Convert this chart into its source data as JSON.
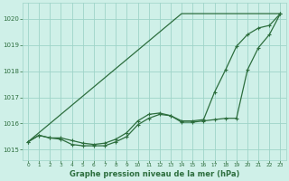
{
  "hours": [
    0,
    1,
    2,
    3,
    4,
    5,
    6,
    7,
    8,
    9,
    10,
    11,
    12,
    13,
    14,
    15,
    16,
    17,
    18,
    19,
    20,
    21,
    22,
    23
  ],
  "line_straight": [
    1015.3,
    1015.65,
    1016.0,
    1016.35,
    1016.7,
    1017.05,
    1017.4,
    1017.75,
    1018.1,
    1018.45,
    1018.8,
    1019.15,
    1019.5,
    1019.85,
    1020.2,
    1020.2,
    1020.2,
    1020.2,
    1020.2,
    1020.2,
    1020.2,
    1020.2,
    1020.2,
    1020.2
  ],
  "line_upper": [
    1015.3,
    1015.55,
    1015.45,
    1015.45,
    1015.35,
    1015.25,
    1015.2,
    1015.25,
    1015.4,
    1015.65,
    1016.1,
    1016.35,
    1016.4,
    1016.3,
    1016.1,
    1016.1,
    1016.15,
    1017.2,
    1018.05,
    1018.95,
    1019.4,
    1019.65,
    1019.75,
    1020.2
  ],
  "line_lower": [
    1015.3,
    1015.55,
    1015.45,
    1015.4,
    1015.2,
    1015.15,
    1015.15,
    1015.15,
    1015.3,
    1015.5,
    1015.95,
    1016.2,
    1016.35,
    1016.3,
    1016.05,
    1016.05,
    1016.1,
    1016.15,
    1016.2,
    1016.2,
    1018.05,
    1018.9,
    1019.4,
    1020.2
  ],
  "bg_color": "#cff0e8",
  "grid_color": "#9ed4c8",
  "line_color": "#2d6e3e",
  "xlabel": "Graphe pression niveau de la mer (hPa)",
  "ylim_min": 1014.6,
  "ylim_max": 1020.6,
  "yticks": [
    1015,
    1016,
    1017,
    1018,
    1019,
    1020
  ],
  "xticks": [
    0,
    1,
    2,
    3,
    4,
    5,
    6,
    7,
    8,
    9,
    10,
    11,
    12,
    13,
    14,
    15,
    16,
    17,
    18,
    19,
    20,
    21,
    22,
    23
  ]
}
